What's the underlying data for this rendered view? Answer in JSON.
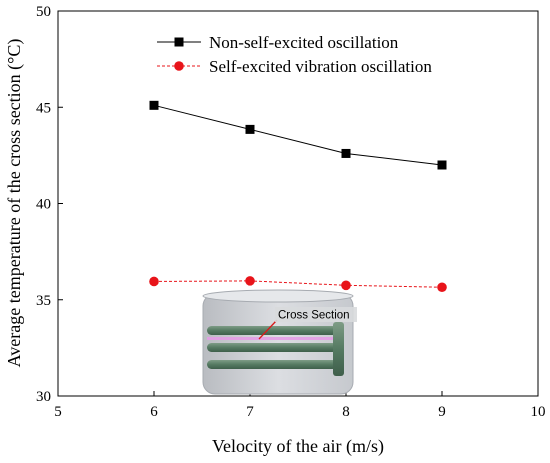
{
  "chart_data": {
    "type": "line",
    "title": "",
    "xlabel": "Velocity of the air (m/s)",
    "ylabel": "Average temperature of the cross section (°C)",
    "xlim": [
      5,
      10
    ],
    "ylim": [
      30,
      50
    ],
    "xticks": [
      "5",
      "6",
      "7",
      "8",
      "9",
      "10"
    ],
    "yticks": [
      "30",
      "35",
      "40",
      "45",
      "50"
    ],
    "grid": false,
    "legend_position": "top-center",
    "x": [
      6,
      7,
      8,
      9
    ],
    "series": [
      {
        "name": "Non-self-excited oscillation",
        "values": [
          45.1,
          43.85,
          42.6,
          42.0
        ],
        "color": "#000000",
        "marker": "square",
        "line": "solid"
      },
      {
        "name": "Self-excited vibration oscillation",
        "values": [
          35.95,
          35.98,
          35.75,
          35.65
        ],
        "color": "#e8141a",
        "marker": "circle",
        "line": "dashed"
      }
    ],
    "inset": {
      "label": "Cross Section"
    }
  }
}
